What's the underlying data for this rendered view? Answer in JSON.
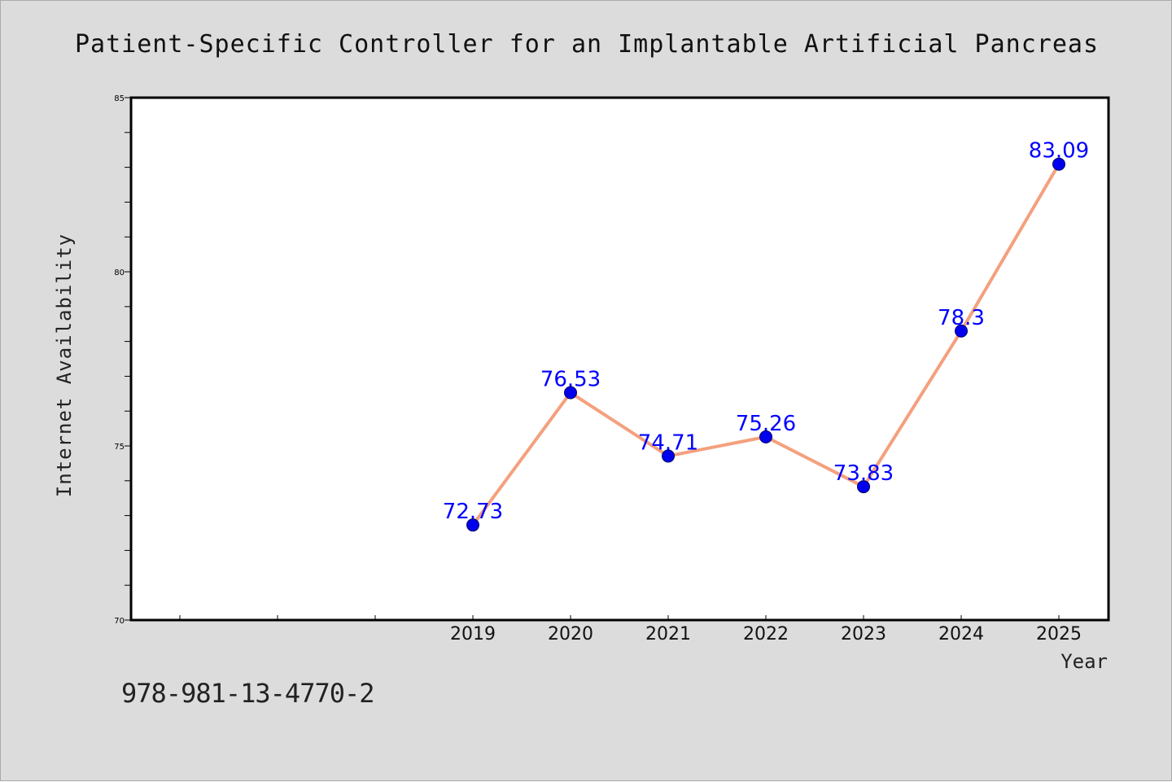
{
  "chart_data": {
    "type": "line",
    "title": "Patient-Specific Controller for an Implantable Artificial Pancreas",
    "xlabel": "Year",
    "ylabel": "Internet Availability",
    "x": [
      "2019",
      "2020",
      "2021",
      "2022",
      "2023",
      "2024",
      "2025"
    ],
    "series": [
      {
        "values": [
          72.73,
          76.53,
          74.71,
          75.26,
          73.83,
          78.3,
          83.09
        ]
      }
    ],
    "data_labels": [
      "72.73",
      "76.53",
      "74.71",
      "75.26",
      "73.83",
      "78.3",
      "83.09"
    ],
    "ylim": [
      70,
      85
    ],
    "yticks": [
      70,
      75,
      80,
      85
    ],
    "ytick_labels": [
      "70",
      "75",
      "80",
      "85"
    ],
    "grid": false,
    "legend": "none",
    "colors": {
      "line": "#f4a07e",
      "marker": "#0000ee",
      "data_label": "#0000ff",
      "background": "#dcdcdc",
      "plot_area": "#ffffff"
    }
  },
  "footer": {
    "isbn": "978-981-13-4770-2"
  }
}
